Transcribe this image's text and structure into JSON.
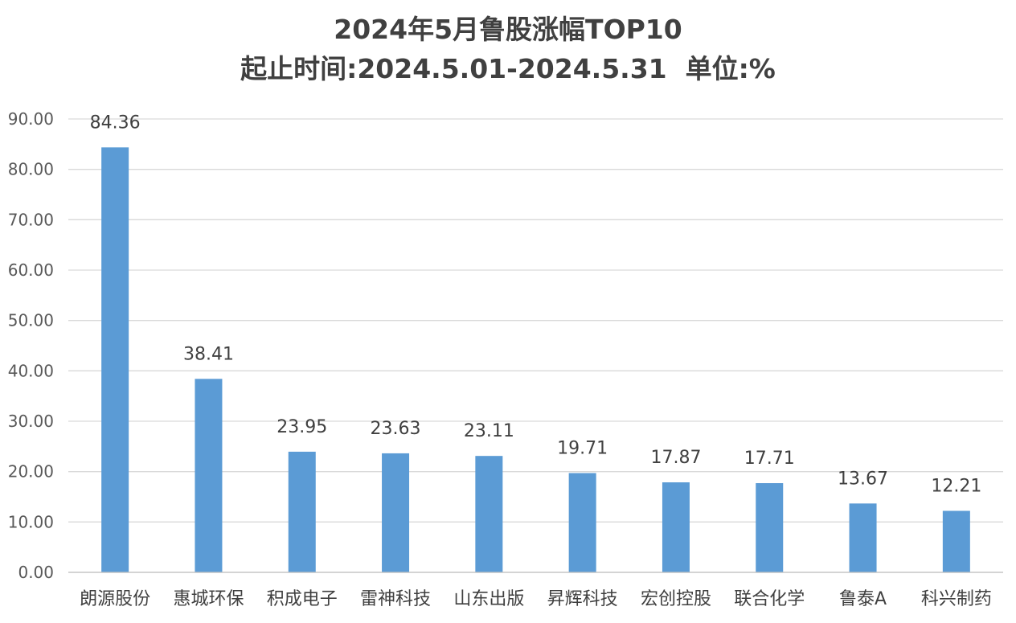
{
  "chart_data": {
    "type": "bar",
    "title": "2024年5月鲁股涨幅TOP10",
    "subtitle": "起止时间:2024.5.01-2024.5.31  单位:%",
    "categories": [
      "朗源股份",
      "惠城环保",
      "积成电子",
      "雷神科技",
      "山东出版",
      "昇辉科技",
      "宏创控股",
      "联合化学",
      "鲁泰A",
      "科兴制药"
    ],
    "values": [
      84.36,
      38.41,
      23.95,
      23.63,
      23.11,
      19.71,
      17.87,
      17.71,
      13.67,
      12.21
    ],
    "value_labels": [
      "84.36",
      "38.41",
      "23.95",
      "23.63",
      "23.11",
      "19.71",
      "17.87",
      "17.71",
      "13.67",
      "12.21"
    ],
    "yticks": [
      "0.00",
      "10.00",
      "20.00",
      "30.00",
      "40.00",
      "50.00",
      "60.00",
      "70.00",
      "80.00",
      "90.00"
    ],
    "ylim": [
      0,
      90
    ],
    "grid": true,
    "bar_color": "#5B9BD5",
    "grid_color": "#D9D9D9"
  }
}
